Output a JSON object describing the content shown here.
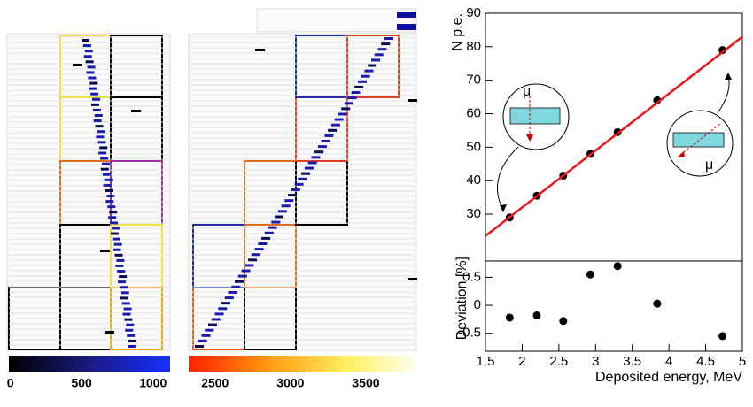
{
  "chart_data": [
    {
      "type": "scatter",
      "ylabel": "N p.e.",
      "annotations": [
        "μ",
        "μ"
      ],
      "xlim": [
        1.5,
        5
      ],
      "ylim": [
        16,
        90
      ],
      "yticks": [
        30,
        40,
        50,
        60,
        70,
        80,
        90
      ],
      "series": [
        {
          "color": "#000000",
          "x": [
            1.83,
            2.2,
            2.56,
            2.93,
            3.3,
            3.84,
            4.73
          ],
          "values": [
            29,
            35.5,
            41.5,
            48,
            54.5,
            64,
            79
          ]
        },
        {
          "type": "line",
          "color": "#e8141a",
          "x": [
            1.5,
            5
          ],
          "values": [
            23.5,
            83
          ]
        }
      ]
    },
    {
      "type": "scatter",
      "ylabel": "Deviation [%]",
      "xlabel": "Deposited energy, MeV",
      "xlim": [
        1.5,
        5
      ],
      "ylim": [
        -0.82,
        0.79
      ],
      "yticks": [
        0.5,
        0,
        -0.5
      ],
      "xticks": [
        1.5,
        2,
        2.5,
        3,
        3.5,
        4,
        4.5,
        5
      ],
      "series": [
        {
          "color": "#000000",
          "x": [
            1.83,
            2.2,
            2.56,
            2.93,
            3.3,
            3.84,
            4.73
          ],
          "values": [
            -0.22,
            -0.18,
            -0.28,
            0.55,
            0.7,
            0.03,
            -0.55
          ]
        }
      ]
    }
  ],
  "colorbars": [
    {
      "lim": [
        -10,
        1120
      ],
      "ticks": [
        0,
        500,
        1000
      ]
    },
    {
      "lim": [
        2325,
        3835
      ],
      "ticks": [
        2500,
        3000,
        3500
      ]
    }
  ]
}
